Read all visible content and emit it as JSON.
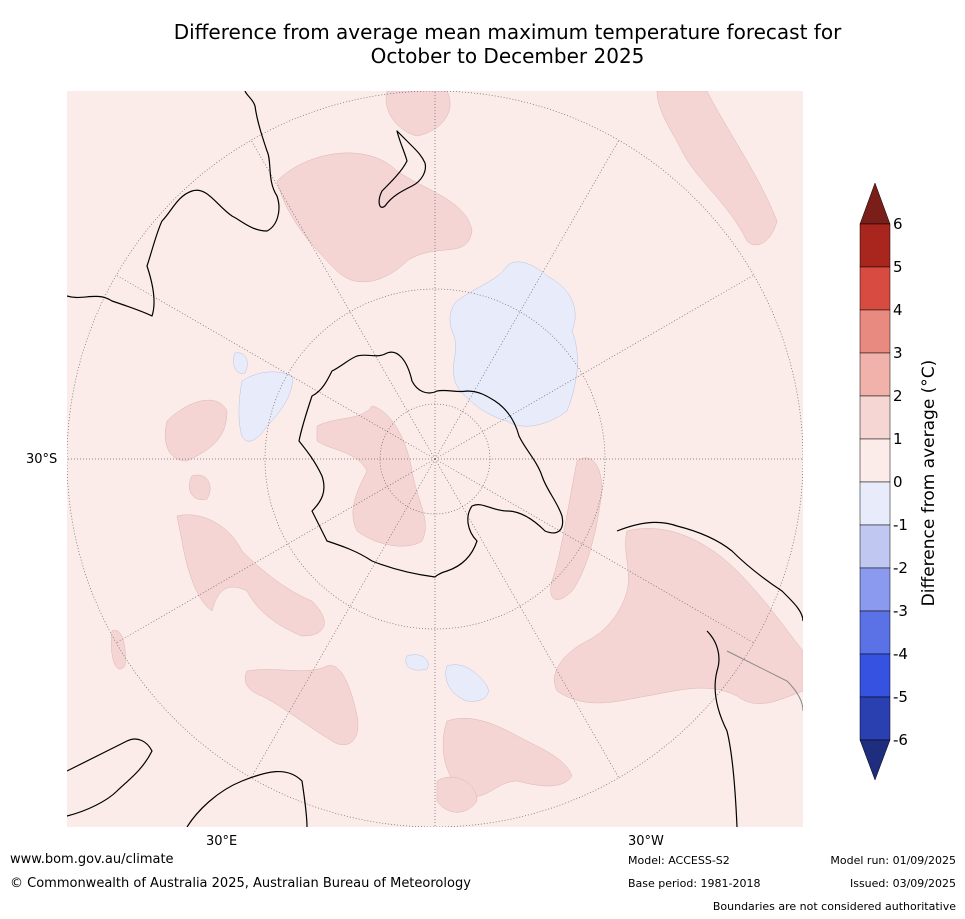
{
  "title": {
    "line1": "Difference from average mean maximum temperature forecast for",
    "line2": "October to December 2025"
  },
  "map": {
    "projection": "south-polar-stereographic",
    "lat_label": "30°S",
    "lon_labels": {
      "east": "30°E",
      "west": "30°W"
    },
    "colors": {
      "ocean_0_1": "#fbecea",
      "warm_1_2": "#f5d5d3",
      "cool_m1_0": "#e8ecfa",
      "coast": "#000000"
    }
  },
  "colorbar": {
    "label": "Difference from average (°C)",
    "ticks": [
      "6",
      "5",
      "4",
      "3",
      "2",
      "1",
      "0",
      "-1",
      "-2",
      "-3",
      "-4",
      "-5",
      "-6"
    ],
    "colors": [
      "#7a1e19",
      "#a8261e",
      "#d84b40",
      "#e88a80",
      "#f0b2ab",
      "#f6d6d3",
      "#fbecea",
      "#e8ecfa",
      "#c0c8f2",
      "#8b9aee",
      "#5a72e6",
      "#3552e0",
      "#2a3fb0",
      "#1f2d7e"
    ]
  },
  "footer": {
    "url": "www.bom.gov.au/climate",
    "copyright": "© Commonwealth of Australia 2025, Australian Bureau of Meteorology",
    "model": "Model: ACCESS-S2",
    "base_period": "Base period: 1981-2018",
    "model_run": "Model run: 01/09/2025",
    "issued": "Issued: 03/09/2025",
    "disclaimer": "Boundaries are not considered authoritative"
  }
}
